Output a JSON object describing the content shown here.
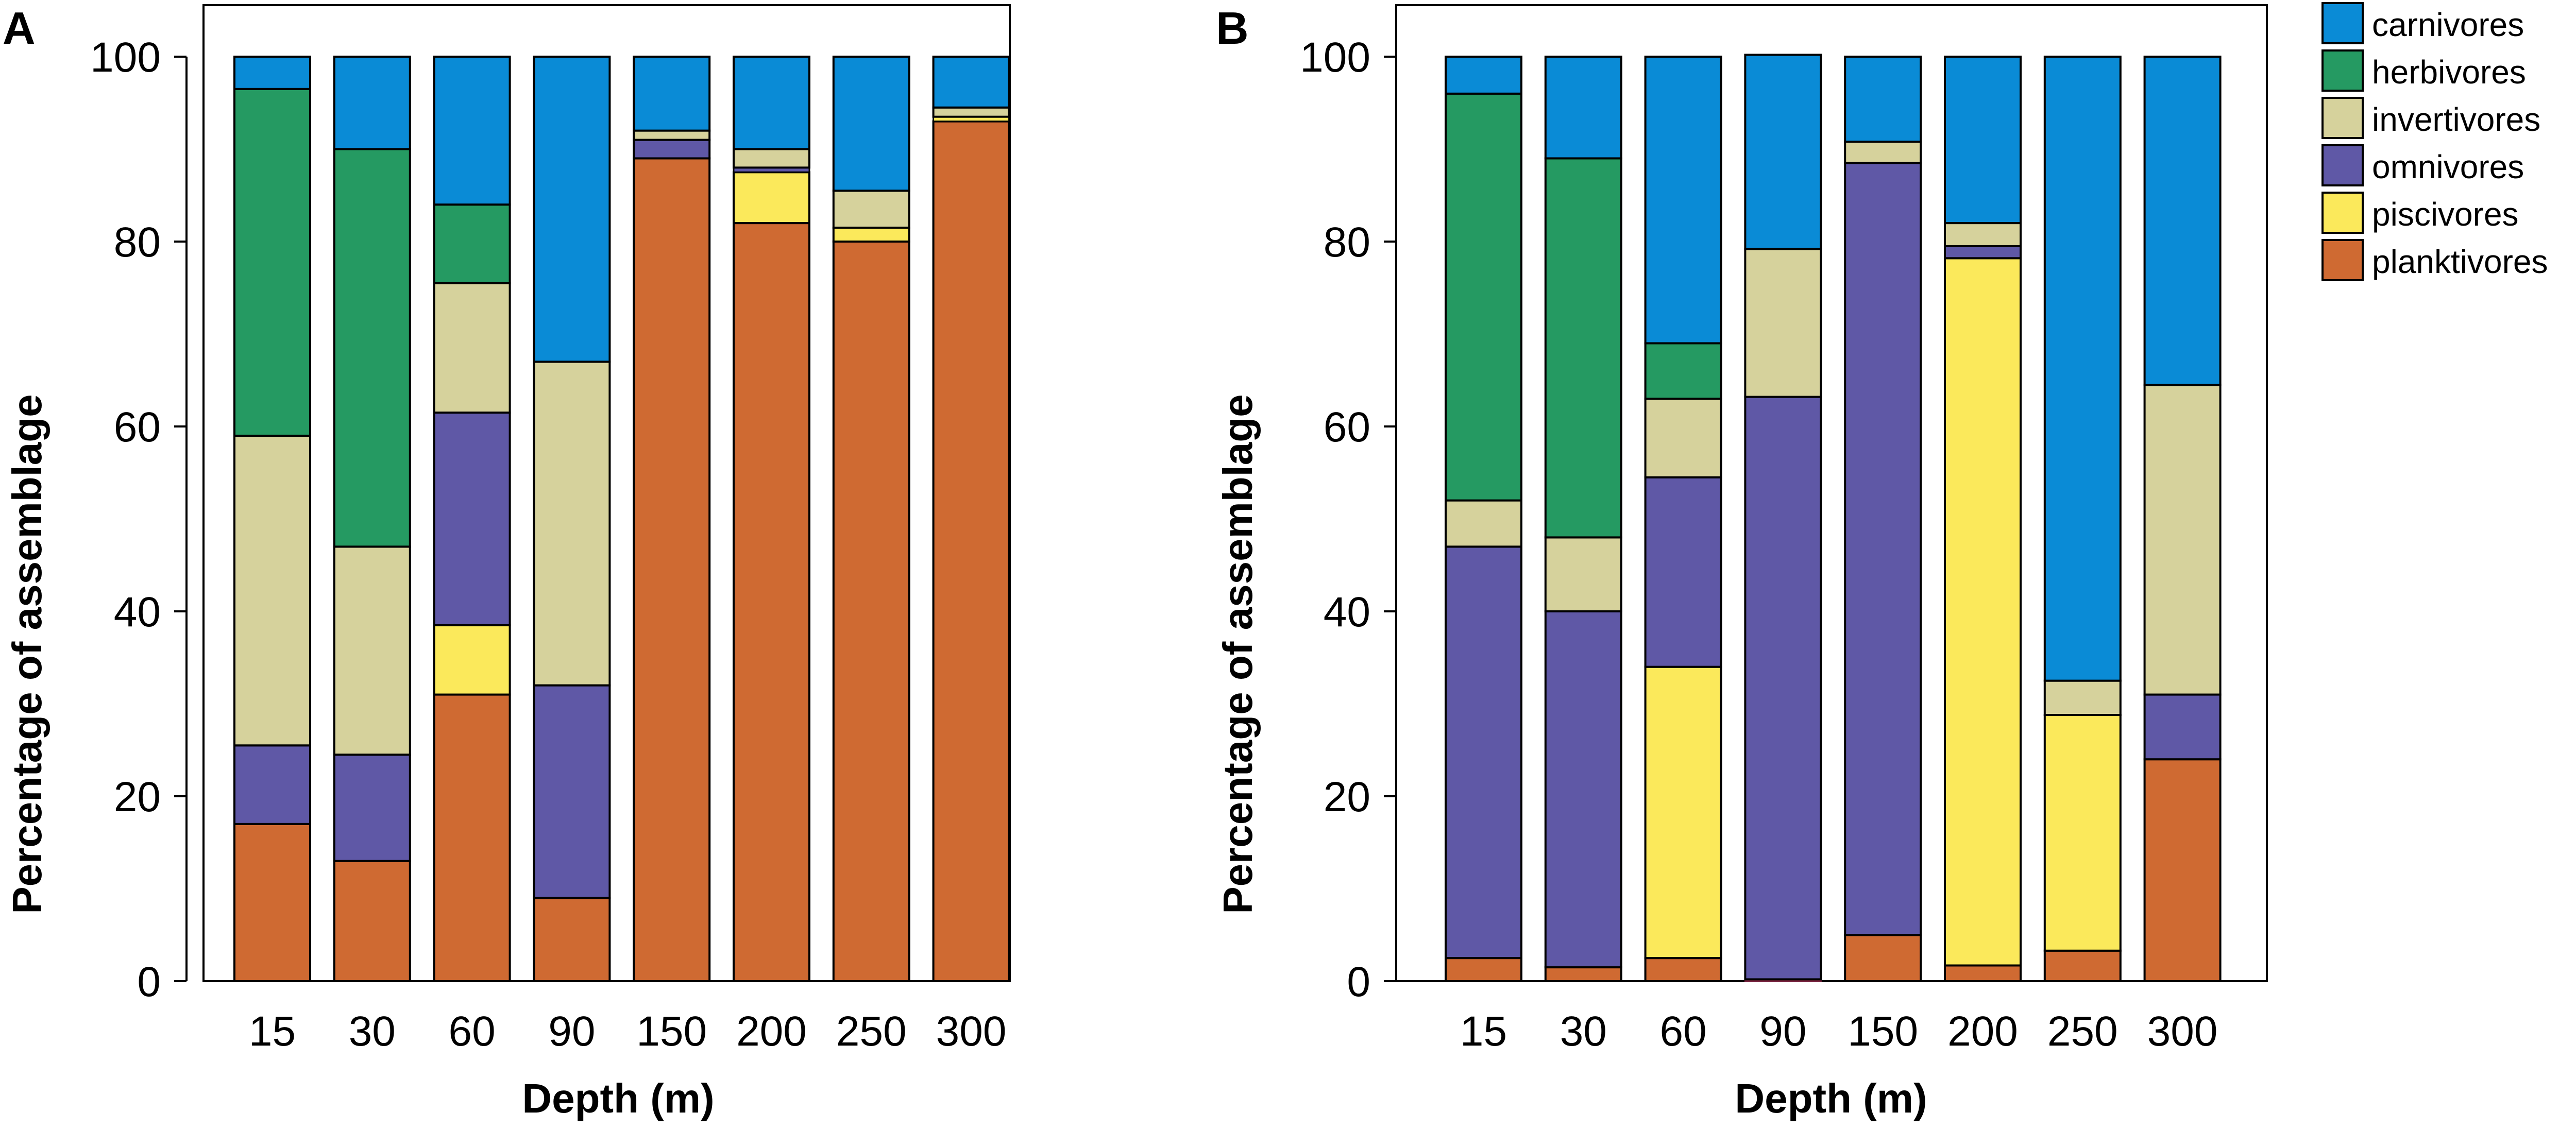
{
  "colors": {
    "carnivores": "#0a8bd6",
    "herbivores": "#259a62",
    "invertivores": "#d6d29c",
    "omnivores": "#5f58a6",
    "piscivores": "#fbe95b",
    "planktivores": "#cf6a32",
    "planktivores_edge": "#7a1f3e"
  },
  "legend": {
    "entries": [
      "carnivores",
      "herbivores",
      "invertivores",
      "omnivores",
      "piscivores",
      "planktivores"
    ]
  },
  "chart_data": [
    {
      "type": "bar",
      "stacked": true,
      "panel": "A",
      "title": "",
      "xlabel": "Depth (m)",
      "ylabel": "Percentage of assemblage",
      "ylim": [
        0,
        100
      ],
      "yticks": [
        0,
        20,
        40,
        60,
        80,
        100
      ],
      "categories": [
        "15",
        "30",
        "60",
        "90",
        "150",
        "200",
        "250",
        "300"
      ],
      "series": [
        {
          "name": "planktivores",
          "values": [
            17,
            13,
            31,
            9,
            89,
            82,
            80,
            93
          ]
        },
        {
          "name": "piscivores",
          "values": [
            0,
            0,
            7.5,
            0,
            0,
            5.5,
            1.5,
            0.5
          ]
        },
        {
          "name": "omnivores",
          "values": [
            8.5,
            11.5,
            23,
            23,
            2,
            0.5,
            0,
            0
          ]
        },
        {
          "name": "invertivores",
          "values": [
            33.5,
            22.5,
            14,
            35,
            1,
            2,
            4,
            1
          ]
        },
        {
          "name": "herbivores",
          "values": [
            37.5,
            43,
            8.5,
            0,
            0,
            0,
            0,
            0
          ]
        },
        {
          "name": "carnivores",
          "values": [
            3.5,
            10,
            16,
            33,
            8,
            10,
            14.5,
            5.5
          ]
        }
      ]
    },
    {
      "type": "bar",
      "stacked": true,
      "panel": "B",
      "title": "",
      "xlabel": "Depth (m)",
      "ylabel": "Percentage of assemblage",
      "ylim": [
        0,
        100
      ],
      "yticks": [
        0,
        20,
        40,
        60,
        80,
        100
      ],
      "categories": [
        "15",
        "30",
        "60",
        "90",
        "150",
        "200",
        "250",
        "300"
      ],
      "series": [
        {
          "name": "planktivores",
          "values": [
            2.5,
            1.5,
            2.5,
            0.2,
            5,
            1.7,
            3.3,
            24
          ]
        },
        {
          "name": "piscivores",
          "values": [
            0,
            0,
            31.5,
            0,
            0,
            76.5,
            25.5,
            0
          ]
        },
        {
          "name": "omnivores",
          "values": [
            44.5,
            38.5,
            20.5,
            63,
            83.5,
            1.3,
            0,
            7
          ]
        },
        {
          "name": "invertivores",
          "values": [
            5,
            8,
            8.5,
            16,
            2.3,
            2.5,
            3.7,
            33.5
          ]
        },
        {
          "name": "herbivores",
          "values": [
            44,
            41,
            6,
            0,
            0,
            0,
            0,
            0
          ]
        },
        {
          "name": "carnivores",
          "values": [
            4,
            11,
            31,
            21,
            9.2,
            18,
            67.5,
            35.5
          ]
        }
      ]
    }
  ]
}
